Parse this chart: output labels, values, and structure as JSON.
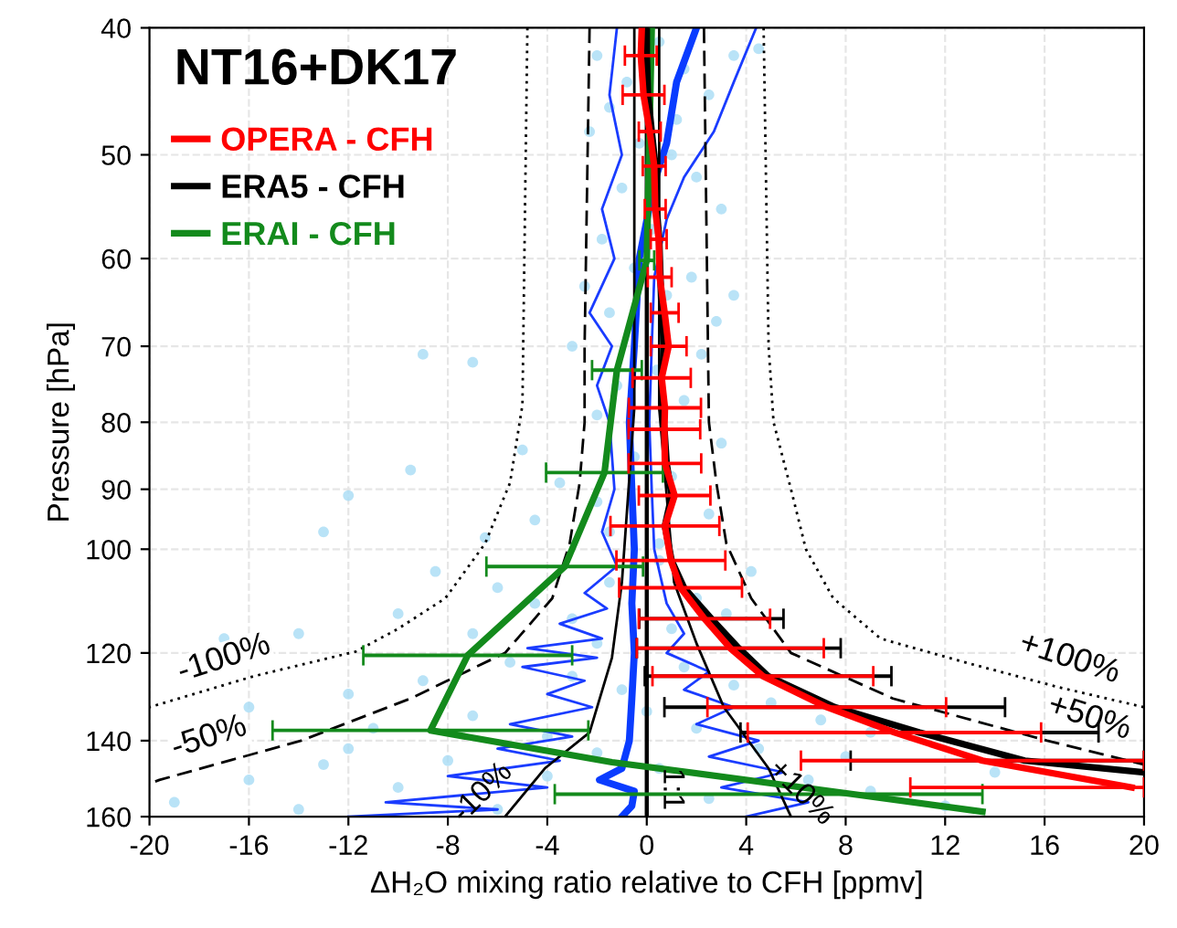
{
  "chart_data": {
    "type": "line",
    "title": "NT16+DK17",
    "xlabel": "ΔH₂O mixing ratio relative to CFH [ppmv]",
    "ylabel": "Pressure [hPa]",
    "log": "y",
    "xlim": [
      -20,
      20
    ],
    "ylim": [
      160,
      40
    ],
    "xticks": [
      -20,
      -16,
      -12,
      -8,
      -4,
      0,
      4,
      8,
      12,
      16,
      20
    ],
    "yticks": [
      40,
      50,
      60,
      70,
      80,
      90,
      100,
      120,
      140,
      160
    ],
    "grid": true,
    "legend": "top left",
    "series": [
      {
        "type": "scatter",
        "color": "#a8dcf5",
        "marker": "circle",
        "x": [
          -2.0,
          -1.5,
          -0.8,
          0.5,
          1.5,
          2.5,
          3.5,
          -2.3,
          1.0,
          2.0,
          3.0,
          -1.0,
          0.2,
          -1.8,
          1.2,
          4.5,
          -0.3,
          -2.5,
          -1.5,
          -0.5,
          0.8,
          1.8,
          2.8,
          -3.0,
          -9.0,
          -7.0,
          -1.2,
          0.4,
          1.5,
          -2.0,
          2.2,
          3.5,
          -5.0,
          -9.5,
          -3.5,
          -2.0,
          -0.5,
          1.0,
          2.5,
          -13,
          -6.5,
          -1.5,
          0.5,
          -12,
          3.0,
          -4.5,
          -8.5,
          -6,
          -4.5,
          -3,
          -1.5,
          0.5,
          2.0,
          3.2,
          -10,
          -14,
          -17,
          -7,
          -2,
          1.0,
          4.2,
          -5.5,
          -9,
          -12,
          -16,
          -3,
          -1,
          1.5,
          3.5,
          5,
          7,
          -7,
          -11,
          -4,
          0,
          2,
          9,
          -19,
          -16,
          -13,
          -10,
          -8,
          -6,
          -4,
          -2,
          0.5,
          2.5,
          4.5,
          6.5,
          9,
          12,
          14,
          -14,
          8,
          -12
        ],
        "values": [
          42,
          46,
          44,
          41,
          43,
          45,
          42,
          48,
          50,
          52,
          55,
          53,
          57,
          58,
          47,
          41.5,
          49,
          63,
          66,
          61,
          64,
          62,
          67,
          70,
          71,
          72,
          75,
          73,
          77,
          79,
          71,
          64,
          84,
          87,
          89,
          92,
          85,
          88,
          94,
          97,
          98,
          97,
          99,
          91,
          83,
          95,
          104,
          107,
          110,
          113,
          106,
          102,
          109,
          112,
          112,
          116,
          117,
          116,
          118,
          115,
          104,
          122,
          126,
          129,
          132,
          125,
          128,
          123,
          127,
          131,
          135,
          134,
          137,
          139,
          133,
          137,
          138,
          156,
          150,
          146,
          152,
          145,
          158,
          149,
          143,
          147,
          155,
          142,
          150,
          153,
          157,
          148,
          158,
          144,
          142
        ]
      },
      {
        "color": "#1a3cff",
        "line_style": "solid",
        "x": [
          -1.2,
          -1.5,
          -1.0,
          -1.8,
          -1.3,
          -2.3,
          -1.4,
          -2.0,
          -1.5,
          -1.3,
          -1.8,
          -1.2,
          -2.5,
          -1.6,
          -3.5,
          -1.8,
          -4.8,
          -2.0,
          -5,
          -2.5,
          -4,
          -2.2,
          -5.5,
          -3,
          -6,
          -3.5,
          -8,
          -4,
          -10.5,
          -6,
          -12
        ],
        "values": [
          40,
          45,
          50,
          55,
          60,
          66,
          70,
          75,
          80,
          90,
          97,
          103,
          108,
          111,
          114,
          117,
          119,
          121,
          123,
          126,
          129,
          132,
          136,
          139,
          142,
          145,
          149,
          152,
          156,
          158,
          160
        ]
      },
      {
        "color": "#1a3cff",
        "line_style": "solid",
        "x": [
          4.4,
          3.5,
          2.7,
          1.5,
          0.8,
          0.3,
          0.2,
          0.1,
          0.2,
          0.3,
          0.8,
          1.5,
          0.8,
          2.5,
          1.5,
          3.5,
          2.0,
          4.5,
          2.5,
          5.5,
          3.0,
          6.5,
          4
        ],
        "values": [
          40,
          44,
          48,
          52,
          56,
          62,
          70,
          80,
          90,
          100,
          110,
          116,
          120,
          124,
          128,
          132,
          136,
          140,
          144,
          148,
          152,
          156,
          160
        ]
      },
      {
        "color": "#0a3cff",
        "line_style": "solid",
        "x": [
          2.0,
          1.2,
          0.8,
          0.3,
          -0.3,
          -0.5,
          -0.7,
          -0.6,
          -0.5,
          -0.6,
          -0.5,
          -0.6,
          -0.7,
          -1.0,
          -1.9,
          -0.5,
          -0.6,
          -1.0
        ],
        "values": [
          40,
          44,
          49,
          52.5,
          60,
          70,
          80,
          90,
          100,
          110,
          120,
          130,
          140,
          147,
          150,
          153,
          157,
          160
        ]
      },
      {
        "color": "#000000",
        "line_style": "dotted",
        "x": [
          -4.8,
          -5.0,
          -5.5,
          -6.5,
          -8.1,
          -10,
          -11.7,
          -15.8,
          -20
        ],
        "values": [
          40,
          77.6,
          89,
          99,
          109,
          115,
          119.7,
          125,
          132
        ]
      },
      {
        "color": "#000000",
        "line_style": "dotted",
        "x": [
          4.7,
          4.9,
          5.1,
          5.8,
          6.4,
          7.5,
          9.4,
          12.8,
          16.6,
          20
        ],
        "values": [
          40,
          70,
          80,
          90,
          100,
          109,
          117,
          122,
          127.5,
          132
        ]
      },
      {
        "color": "#000000",
        "line_style": "dashed",
        "x": [
          -2.3,
          -2.5,
          -2.5,
          -2.7,
          -3.1,
          -3.8,
          -5.7,
          -9.5,
          -13.9,
          -19.6,
          -20
        ],
        "values": [
          40,
          70,
          80,
          89,
          99,
          109,
          120,
          130,
          140,
          150,
          151
        ]
      },
      {
        "color": "#000000",
        "line_style": "dashed",
        "x": [
          2.3,
          2.5,
          2.8,
          3.2,
          4.2,
          5.8,
          9.9,
          16.1,
          20
        ],
        "values": [
          40,
          80,
          89,
          99,
          109,
          120,
          130,
          140,
          146
        ]
      },
      {
        "color": "#000000",
        "line_style": "solid",
        "x": [
          -0.5,
          -0.5,
          -1.0,
          -1.4,
          -2.3,
          -4.1,
          -5.7
        ],
        "values": [
          40,
          78,
          106,
          121,
          138,
          147,
          160
        ]
      },
      {
        "color": "#000000",
        "line_style": "solid",
        "x": [
          0.5,
          0.5,
          1.1,
          2.0,
          3.1,
          4.9,
          5.8
        ],
        "values": [
          40,
          78,
          106,
          118,
          132,
          147,
          160
        ]
      },
      {
        "name": "ERAI - CFH",
        "color": "#138a1c",
        "line_style": "solid",
        "x": [
          0.2,
          0.0,
          -1.2,
          -1.7,
          -3.3,
          -7.2,
          -8.7,
          -1.4,
          8.3,
          13.5
        ],
        "values": [
          40,
          60.2,
          73,
          87.4,
          103.1,
          120.5,
          137.5,
          145.4,
          153.8,
          158.6
        ],
        "xerrors": [
          null,
          0.3,
          [
            -2.2,
            -0.2
          ],
          2.35,
          3.15,
          4.2,
          6.35,
          null,
          [
            -3.7,
            13.5
          ],
          null
        ]
      },
      {
        "name": "ERA5 - CFH",
        "color": "#000000",
        "line_style": "solid",
        "x": [
          0.0,
          0.0,
          0.05,
          0.2,
          0.35,
          0.4,
          0.5,
          0.55,
          0.6,
          0.7,
          0.6,
          0.6,
          0.71,
          0.8,
          1.0,
          0.73,
          1.0,
          1.5,
          2.6,
          3.7,
          4.88,
          7.56,
          10.97,
          15.2,
          20
        ],
        "values": [
          40,
          42,
          45,
          48,
          51,
          55,
          58,
          62,
          66,
          70,
          74,
          78,
          81,
          86,
          91,
          96,
          102,
          107,
          113,
          119,
          125,
          132,
          138,
          145,
          148
        ],
        "xerrors": [
          null,
          null,
          null,
          null,
          null,
          null,
          null,
          null,
          null,
          null,
          null,
          null,
          null,
          null,
          null,
          null,
          null,
          null,
          2.9,
          4.1,
          4.96,
          6.85,
          7.2,
          [
            8.2,
            20
          ],
          null
        ]
      },
      {
        "name": "OPERA - CFH",
        "color": "#ff0000",
        "line_style": "solid",
        "x": [
          -0.2,
          -0.24,
          -0.13,
          0.12,
          0.3,
          0.34,
          0.48,
          0.52,
          0.72,
          0.88,
          0.6,
          0.73,
          0.71,
          0.73,
          1.12,
          0.73,
          0.97,
          1.36,
          2.32,
          3.36,
          4.67,
          7.24,
          9.96,
          13.5,
          19.5
        ],
        "values": [
          40,
          42,
          45,
          48,
          51,
          55,
          58,
          62,
          66,
          70,
          74,
          78,
          81,
          86,
          91,
          96,
          102,
          107,
          113,
          119,
          125,
          132,
          138,
          145,
          152
        ],
        "xerrors": [
          null,
          0.64,
          0.84,
          0.44,
          0.46,
          0.42,
          0.32,
          0.48,
          0.56,
          0.72,
          1.17,
          1.45,
          1.44,
          1.46,
          1.44,
          2.19,
          2.19,
          2.47,
          2.64,
          3.76,
          4.44,
          4.8,
          5.9,
          [
            6.2,
            20
          ],
          [
            10.6,
            20
          ]
        ]
      }
    ],
    "ref_lines": [
      {
        "axis": "x",
        "value": 0,
        "color": "#000000",
        "line_style": "solid"
      }
    ],
    "annotations": [
      "-100%",
      "-50%",
      "+100%",
      "+50%",
      "-10%",
      "+10%",
      "1:1"
    ]
  }
}
